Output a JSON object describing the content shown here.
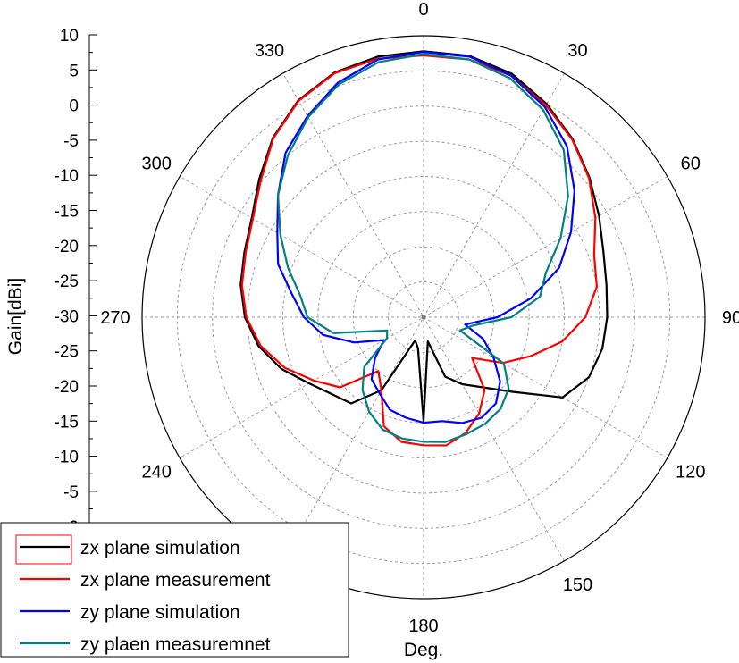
{
  "chart_data": {
    "type": "polar-line",
    "title": "",
    "xlabel": "Deg.",
    "ylabel": "Gain[dBi]",
    "radial_range": [
      -30,
      10
    ],
    "radial_tick_labels": [
      "10",
      "5",
      "0",
      "-5",
      "-10",
      "-15",
      "-20",
      "-25",
      "-30",
      "-25",
      "-20",
      "-15",
      "-10",
      "-5",
      "0"
    ],
    "angle_ticks": [
      0,
      30,
      60,
      90,
      120,
      150,
      180,
      240,
      270,
      300,
      330
    ],
    "angle_tick_labels": [
      "0",
      "30",
      "60",
      "90",
      "120",
      "150",
      "180",
      "240",
      "270",
      "300",
      "330"
    ],
    "angular_grid_step_deg": 30,
    "radial_grid_step": 5,
    "grid": true,
    "legend_position": "bottom-left",
    "series": [
      {
        "name": "zx plane simulation",
        "color": "#000000",
        "points": [
          [
            0,
            7.8
          ],
          [
            10,
            7.7
          ],
          [
            20,
            6.8
          ],
          [
            30,
            5.0
          ],
          [
            40,
            3.0
          ],
          [
            50,
            0.8
          ],
          [
            60,
            -1.2
          ],
          [
            70,
            -2.8
          ],
          [
            80,
            -3.6
          ],
          [
            90,
            -3.9
          ],
          [
            100,
            -4.2
          ],
          [
            110,
            -5.0
          ],
          [
            120,
            -7.2
          ],
          [
            130,
            -13.5
          ],
          [
            140,
            -17.0
          ],
          [
            150,
            -19.0
          ],
          [
            160,
            -21.0
          ],
          [
            170,
            -26.5
          ],
          [
            180,
            -15.2
          ],
          [
            190,
            -25.5
          ],
          [
            200,
            -26.5
          ],
          [
            210,
            -18.0
          ],
          [
            220,
            -14.0
          ],
          [
            230,
            -13.0
          ],
          [
            240,
            -11.2
          ],
          [
            250,
            -8.5
          ],
          [
            260,
            -6.2
          ],
          [
            270,
            -4.6
          ],
          [
            280,
            -3.6
          ],
          [
            290,
            -2.9
          ],
          [
            300,
            -1.8
          ],
          [
            310,
            0.5
          ],
          [
            320,
            3.3
          ],
          [
            330,
            5.6
          ],
          [
            340,
            7.0
          ],
          [
            350,
            7.6
          ],
          [
            360,
            7.8
          ]
        ]
      },
      {
        "name": "zx plane measurement",
        "color": "#ff0000",
        "points": [
          [
            0,
            7.2
          ],
          [
            10,
            7.2
          ],
          [
            20,
            6.5
          ],
          [
            30,
            4.8
          ],
          [
            40,
            2.9
          ],
          [
            50,
            0.7
          ],
          [
            60,
            -1.8
          ],
          [
            70,
            -4.2
          ],
          [
            80,
            -5.0
          ],
          [
            90,
            -7.0
          ],
          [
            100,
            -10.0
          ],
          [
            110,
            -13.8
          ],
          [
            120,
            -17.0
          ],
          [
            130,
            -21.0
          ],
          [
            140,
            -16.5
          ],
          [
            150,
            -14.2
          ],
          [
            160,
            -12.5
          ],
          [
            170,
            -11.5
          ],
          [
            180,
            -11.8
          ],
          [
            190,
            -12.0
          ],
          [
            200,
            -13.5
          ],
          [
            210,
            -18.0
          ],
          [
            220,
            -20.0
          ],
          [
            230,
            -14.5
          ],
          [
            240,
            -12.0
          ],
          [
            250,
            -9.0
          ],
          [
            260,
            -6.5
          ],
          [
            270,
            -4.8
          ],
          [
            280,
            -3.8
          ],
          [
            290,
            -3.1
          ],
          [
            300,
            -2.0
          ],
          [
            310,
            0.2
          ],
          [
            320,
            3.2
          ],
          [
            330,
            5.5
          ],
          [
            340,
            6.9
          ],
          [
            350,
            7.3
          ],
          [
            360,
            7.2
          ]
        ]
      },
      {
        "name": "zy plane simulation",
        "color": "#0000ff",
        "points": [
          [
            0,
            7.7
          ],
          [
            10,
            7.6
          ],
          [
            20,
            6.5
          ],
          [
            30,
            4.5
          ],
          [
            40,
            1.7
          ],
          [
            50,
            -2.0
          ],
          [
            60,
            -5.8
          ],
          [
            70,
            -9.5
          ],
          [
            80,
            -14.5
          ],
          [
            90,
            -19.5
          ],
          [
            100,
            -24.0
          ],
          [
            110,
            -21.0
          ],
          [
            120,
            -18.5
          ],
          [
            130,
            -15.8
          ],
          [
            140,
            -14.0
          ],
          [
            150,
            -13.5
          ],
          [
            160,
            -14.0
          ],
          [
            170,
            -15.0
          ],
          [
            180,
            -15.0
          ],
          [
            190,
            -15.5
          ],
          [
            200,
            -16.0
          ],
          [
            210,
            -17.5
          ],
          [
            220,
            -18.5
          ],
          [
            230,
            -21.0
          ],
          [
            240,
            -23.5
          ],
          [
            250,
            -19.5
          ],
          [
            260,
            -15.5
          ],
          [
            270,
            -13.0
          ],
          [
            280,
            -11.0
          ],
          [
            290,
            -8.0
          ],
          [
            300,
            -6.0
          ],
          [
            310,
            -3.0
          ],
          [
            320,
            0.5
          ],
          [
            330,
            3.0
          ],
          [
            340,
            5.5
          ],
          [
            350,
            7.2
          ],
          [
            360,
            7.7
          ]
        ]
      },
      {
        "name": "zy plaen measuremnet",
        "color": "#008080",
        "points": [
          [
            0,
            7.4
          ],
          [
            10,
            7.2
          ],
          [
            20,
            6.1
          ],
          [
            30,
            4.0
          ],
          [
            40,
            1.0
          ],
          [
            50,
            -3.2
          ],
          [
            60,
            -7.5
          ],
          [
            70,
            -11.5
          ],
          [
            80,
            -13.2
          ],
          [
            90,
            -17.5
          ],
          [
            100,
            -23.0
          ],
          [
            110,
            -24.5
          ],
          [
            120,
            -16.8
          ],
          [
            130,
            -14.2
          ],
          [
            140,
            -13.0
          ],
          [
            150,
            -12.5
          ],
          [
            160,
            -12.3
          ],
          [
            170,
            -12.0
          ],
          [
            180,
            -12.3
          ],
          [
            190,
            -12.5
          ],
          [
            200,
            -13.0
          ],
          [
            210,
            -14.5
          ],
          [
            220,
            -16.5
          ],
          [
            230,
            -19.0
          ],
          [
            240,
            -24.0
          ],
          [
            250,
            -24.5
          ],
          [
            260,
            -17.0
          ],
          [
            270,
            -13.5
          ],
          [
            280,
            -12.2
          ],
          [
            290,
            -9.5
          ],
          [
            300,
            -6.5
          ],
          [
            310,
            -3.0
          ],
          [
            320,
            0.0
          ],
          [
            330,
            2.8
          ],
          [
            340,
            5.2
          ],
          [
            350,
            6.8
          ],
          [
            360,
            7.4
          ]
        ]
      }
    ]
  }
}
